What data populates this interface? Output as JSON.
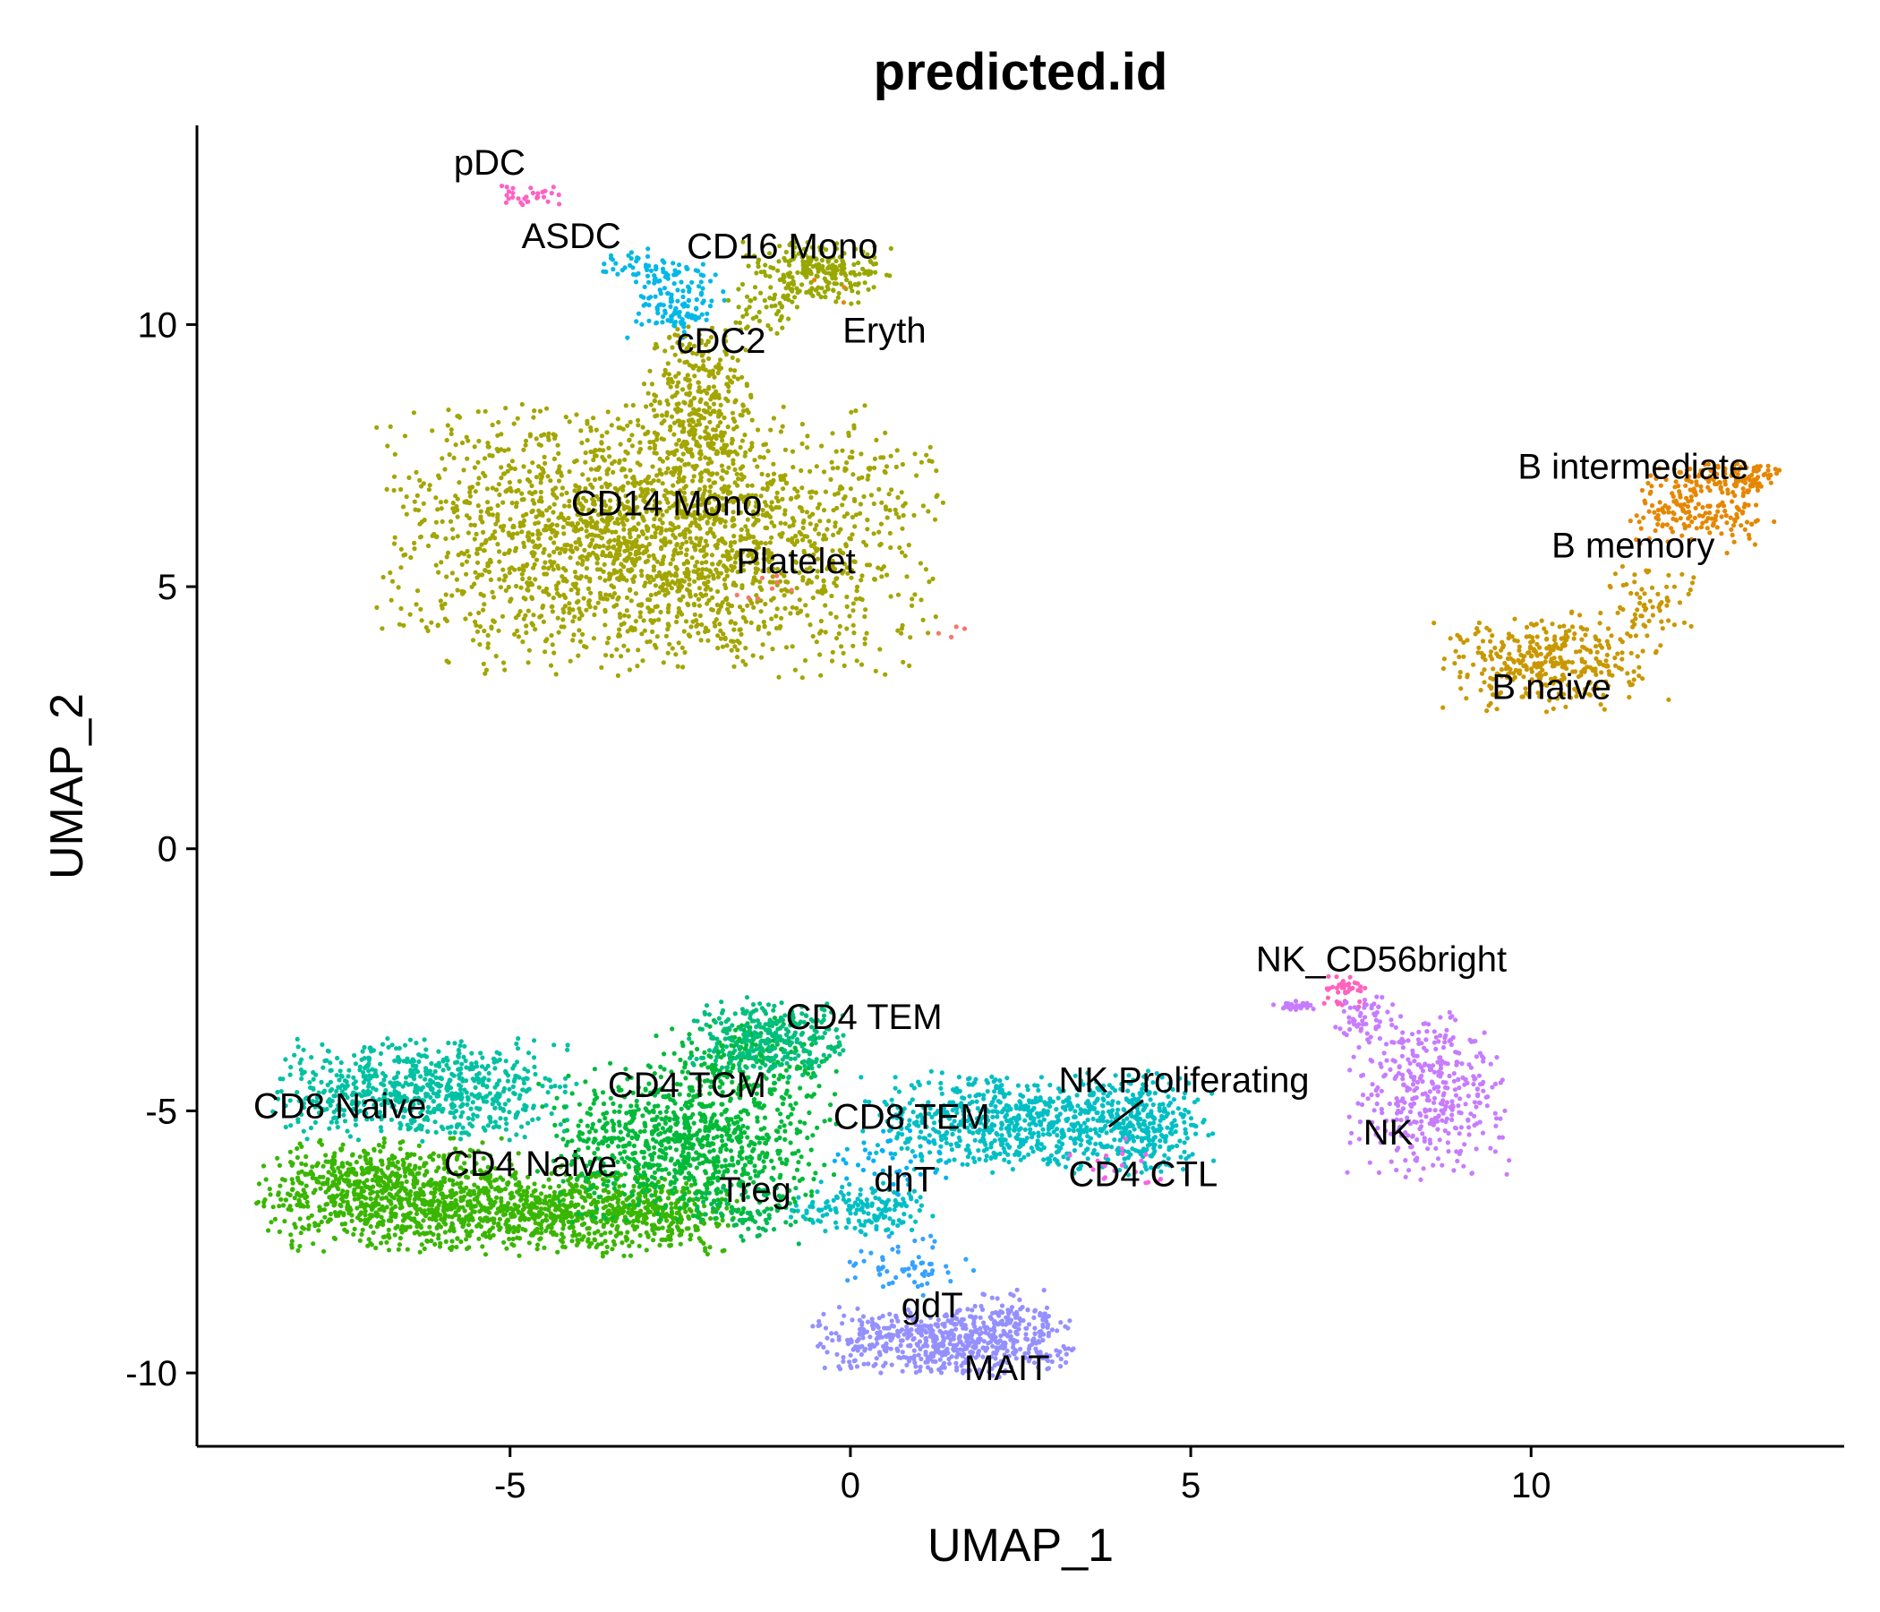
{
  "chart_data": {
    "type": "scatter",
    "title": "predicted.id",
    "xlabel": "UMAP_1",
    "ylabel": "UMAP_2",
    "xlim": [
      -9.6,
      14.6
    ],
    "ylim": [
      -11.4,
      13.8
    ],
    "xticks": [
      {
        "value": -5,
        "label": "-5"
      },
      {
        "value": 0,
        "label": "0"
      },
      {
        "value": 5,
        "label": "5"
      },
      {
        "value": 10,
        "label": "10"
      }
    ],
    "yticks": [
      {
        "value": -10,
        "label": "-10"
      },
      {
        "value": -5,
        "label": "-5"
      },
      {
        "value": 0,
        "label": "0"
      },
      {
        "value": 5,
        "label": "5"
      },
      {
        "value": 10,
        "label": "10"
      }
    ],
    "legend": "none",
    "clusters": [
      {
        "name": "pDC",
        "color": "#FF61C3",
        "center": [
          -5.0,
          12.7
        ],
        "count": 30,
        "label_pos": [
          -5.3,
          13.1
        ],
        "blobs": [
          {
            "x": -4.75,
            "y": 12.45,
            "sx": 0.25,
            "sy": 0.12,
            "n": 30
          }
        ]
      },
      {
        "name": "ASDC",
        "color": "#00BADE",
        "center": [
          -4.0,
          11.5
        ],
        "count": 10,
        "label_pos": [
          -4.1,
          11.7
        ],
        "blobs": [
          {
            "x": -3.2,
            "y": 11.3,
            "sx": 0.3,
            "sy": 0.15,
            "n": 10
          }
        ]
      },
      {
        "name": "cDC2",
        "color": "#00B8E7",
        "center": [
          -2.5,
          10.4
        ],
        "count": 160,
        "label_pos": [
          -1.9,
          9.7
        ],
        "blobs": [
          {
            "x": -2.6,
            "y": 10.5,
            "sx": 0.35,
            "sy": 0.35,
            "n": 140
          },
          {
            "x": -3.3,
            "y": 11.1,
            "sx": 0.3,
            "sy": 0.1,
            "n": 20
          }
        ]
      },
      {
        "name": "CD16 Mono",
        "color": "#99A800",
        "center": [
          -0.5,
          11.0
        ],
        "count": 280,
        "label_pos": [
          -1.0,
          11.5
        ],
        "blobs": [
          {
            "x": -0.5,
            "y": 11.0,
            "sx": 0.5,
            "sy": 0.3,
            "n": 230
          },
          {
            "x": -1.2,
            "y": 10.3,
            "sx": 0.3,
            "sy": 0.25,
            "n": 50
          }
        ]
      },
      {
        "name": "Eryth",
        "color": "#E58700",
        "center": [
          0.5,
          10.1
        ],
        "count": 3,
        "label_pos": [
          0.5,
          9.9
        ],
        "blobs": [
          {
            "x": -0.3,
            "y": 10.7,
            "sx": 0.2,
            "sy": 0.2,
            "n": 3
          }
        ]
      },
      {
        "name": "CD14 Mono",
        "color": "#A3A500",
        "center": [
          -2.7,
          6.5
        ],
        "count": 2600,
        "label_pos": [
          -2.7,
          6.6
        ],
        "blobs": [
          {
            "x": -2.8,
            "y": 5.9,
            "sx": 1.9,
            "sy": 1.2,
            "n": 2300
          },
          {
            "x": -2.2,
            "y": 8.5,
            "sx": 0.4,
            "sy": 0.7,
            "n": 300
          }
        ]
      },
      {
        "name": "Platelet",
        "color": "#F8766D",
        "center": [
          -1.5,
          5.5
        ],
        "count": 12,
        "label_pos": [
          -0.8,
          5.5
        ],
        "blobs": [
          {
            "x": -1.4,
            "y": 5.0,
            "sx": 0.3,
            "sy": 0.2,
            "n": 8
          },
          {
            "x": 1.5,
            "y": 4.2,
            "sx": 0.1,
            "sy": 0.1,
            "n": 4
          }
        ]
      },
      {
        "name": "B intermediate",
        "color": "#E76BF3",
        "center": [
          12.5,
          6.8
        ],
        "count": 0,
        "label_pos": [
          11.5,
          7.3
        ],
        "blobs": []
      },
      {
        "name": "B memory",
        "color": "#E58700",
        "center": [
          12.5,
          6.3
        ],
        "count": 280,
        "label_pos": [
          11.5,
          5.8
        ],
        "blobs": [
          {
            "x": 12.5,
            "y": 6.5,
            "sx": 0.5,
            "sy": 0.4,
            "n": 200
          },
          {
            "x": 13.1,
            "y": 7.1,
            "sx": 0.3,
            "sy": 0.15,
            "n": 80
          }
        ]
      },
      {
        "name": "B naive",
        "color": "#C99800",
        "center": [
          10.3,
          3.6
        ],
        "count": 420,
        "label_pos": [
          10.3,
          3.1
        ],
        "blobs": [
          {
            "x": 10.3,
            "y": 3.6,
            "sx": 0.8,
            "sy": 0.45,
            "n": 360
          },
          {
            "x": 11.8,
            "y": 4.8,
            "sx": 0.35,
            "sy": 0.3,
            "n": 60
          }
        ]
      },
      {
        "name": "NK_CD56bright",
        "color": "#FF62BC",
        "center": [
          7.2,
          -2.6
        ],
        "count": 40,
        "label_pos": [
          7.8,
          -2.1
        ],
        "blobs": [
          {
            "x": 7.25,
            "y": -2.7,
            "sx": 0.15,
            "sy": 0.15,
            "n": 40
          }
        ]
      },
      {
        "name": "NK",
        "color": "#C77CFF",
        "center": [
          8.5,
          -4.6
        ],
        "count": 460,
        "label_pos": [
          7.9,
          -5.4
        ],
        "blobs": [
          {
            "x": 8.5,
            "y": -4.7,
            "sx": 0.55,
            "sy": 0.75,
            "n": 380
          },
          {
            "x": 7.6,
            "y": -3.2,
            "sx": 0.25,
            "sy": 0.25,
            "n": 50
          },
          {
            "x": 6.5,
            "y": -3.0,
            "sx": 0.15,
            "sy": 0.05,
            "n": 30
          }
        ]
      },
      {
        "name": "CD8 Naive",
        "color": "#00C1A3",
        "center": [
          -6.5,
          -4.5
        ],
        "count": 700,
        "label_pos": [
          -7.5,
          -4.9
        ],
        "blobs": [
          {
            "x": -6.3,
            "y": -4.6,
            "sx": 1.0,
            "sy": 0.45,
            "n": 700
          }
        ]
      },
      {
        "name": "CD4 Naive",
        "color": "#39B600",
        "center": [
          -5.0,
          -6.5
        ],
        "count": 1700,
        "label_pos": [
          -4.7,
          -6.0
        ],
        "blobs": [
          {
            "x": -6.8,
            "y": -6.6,
            "sx": 0.9,
            "sy": 0.5,
            "n": 800
          },
          {
            "x": -4.5,
            "y": -6.9,
            "sx": 1.1,
            "sy": 0.4,
            "n": 700
          },
          {
            "x": -2.8,
            "y": -7.0,
            "sx": 0.6,
            "sy": 0.35,
            "n": 200
          }
        ]
      },
      {
        "name": "CD4 TCM",
        "color": "#00BA38",
        "center": [
          -2.5,
          -5.5
        ],
        "count": 1100,
        "label_pos": [
          -2.4,
          -4.5
        ],
        "blobs": [
          {
            "x": -2.4,
            "y": -5.6,
            "sx": 1.0,
            "sy": 0.7,
            "n": 900
          },
          {
            "x": -1.5,
            "y": -4.0,
            "sx": 0.6,
            "sy": 0.4,
            "n": 200
          }
        ]
      },
      {
        "name": "CD4 TEM",
        "color": "#00BF7D",
        "center": [
          -1.0,
          -3.6
        ],
        "count": 300,
        "label_pos": [
          0.2,
          -3.2
        ],
        "blobs": [
          {
            "x": -1.2,
            "y": -3.6,
            "sx": 0.55,
            "sy": 0.35,
            "n": 300
          }
        ]
      },
      {
        "name": "Treg",
        "color": "#00B954",
        "center": [
          -1.5,
          -6.5
        ],
        "count": 80,
        "label_pos": [
          -1.4,
          -6.5
        ],
        "blobs": [
          {
            "x": -1.5,
            "y": -6.9,
            "sx": 0.4,
            "sy": 0.3,
            "n": 80
          }
        ]
      },
      {
        "name": "CD8 TEM",
        "color": "#00BFC4",
        "center": [
          2.5,
          -5.2
        ],
        "count": 1100,
        "label_pos": [
          0.9,
          -5.1
        ],
        "blobs": [
          {
            "x": 2.5,
            "y": -5.2,
            "sx": 1.1,
            "sy": 0.45,
            "n": 700
          },
          {
            "x": 4.3,
            "y": -5.3,
            "sx": 0.5,
            "sy": 0.45,
            "n": 250
          },
          {
            "x": 0.2,
            "y": -6.9,
            "sx": 0.5,
            "sy": 0.25,
            "n": 150
          }
        ]
      },
      {
        "name": "dnT",
        "color": "#00B0F6",
        "center": [
          0.8,
          -6.3
        ],
        "count": 40,
        "label_pos": [
          0.8,
          -6.3
        ],
        "blobs": [
          {
            "x": 0.6,
            "y": -6.0,
            "sx": 0.4,
            "sy": 0.3,
            "n": 40
          }
        ]
      },
      {
        "name": "NK Proliferating",
        "color": "#D39200",
        "center": [
          4.0,
          -5.0
        ],
        "count": 0,
        "label_pos": [
          4.9,
          -4.4
        ],
        "leader_line": [
          [
            3.8,
            -5.3
          ],
          [
            4.3,
            -4.8
          ]
        ],
        "blobs": []
      },
      {
        "name": "CD4 CTL",
        "color": "#F564E3",
        "center": [
          4.0,
          -6.0
        ],
        "count": 20,
        "label_pos": [
          4.3,
          -6.2
        ],
        "blobs": [
          {
            "x": 3.9,
            "y": -6.0,
            "sx": 0.35,
            "sy": 0.25,
            "n": 20
          }
        ]
      },
      {
        "name": "gdT",
        "color": "#35A2FF",
        "center": [
          1.2,
          -8.5
        ],
        "count": 60,
        "label_pos": [
          1.2,
          -8.7
        ],
        "blobs": [
          {
            "x": 0.9,
            "y": -8.0,
            "sx": 0.5,
            "sy": 0.3,
            "n": 60
          }
        ]
      },
      {
        "name": "MAIT",
        "color": "#9590FF",
        "center": [
          1.7,
          -9.4
        ],
        "count": 650,
        "label_pos": [
          2.3,
          -9.9
        ],
        "blobs": [
          {
            "x": 1.4,
            "y": -9.4,
            "sx": 0.9,
            "sy": 0.3,
            "n": 550
          },
          {
            "x": 2.3,
            "y": -9.0,
            "sx": 0.35,
            "sy": 0.35,
            "n": 100
          }
        ]
      }
    ]
  }
}
